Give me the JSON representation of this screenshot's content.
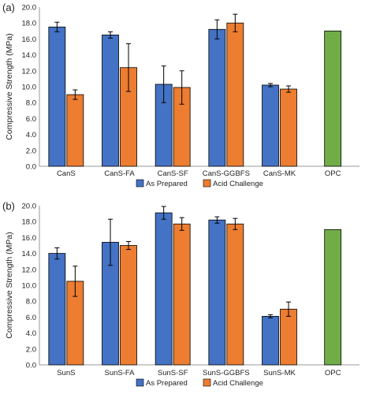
{
  "colors": {
    "as_prepared": "#4472C4",
    "acid_challenge": "#ED7D31",
    "opc": "#70AD47",
    "axis": "#999999",
    "grid": "#d9d9d9",
    "text": "#222222"
  },
  "chart_data": [
    {
      "type": "bar",
      "panel_label": "(a)",
      "ylabel": "Compressive Strength (MPa)",
      "ylim": [
        0,
        20
      ],
      "ytick_step": 2,
      "ytick_labels": [
        "0.0",
        "2.0",
        "4.0",
        "6.0",
        "8.0",
        "10.0",
        "12.0",
        "14.0",
        "16.0",
        "18.0",
        "20.0"
      ],
      "grid": false,
      "legend_position": "bottom-center",
      "categories": [
        "CanS",
        "CanS-FA",
        "CanS-SF",
        "CanS-GGBFS",
        "CanS-MK",
        "OPC"
      ],
      "series": [
        {
          "name": "As Prepared",
          "values": [
            17.5,
            16.5,
            10.3,
            17.2,
            10.2,
            null
          ],
          "errors": [
            0.6,
            0.4,
            2.3,
            1.2,
            0.2,
            null
          ]
        },
        {
          "name": "Acid Challenge",
          "values": [
            9.0,
            12.4,
            9.9,
            18.0,
            9.7,
            null
          ],
          "errors": [
            0.6,
            3.0,
            2.1,
            1.1,
            0.4,
            null
          ]
        },
        {
          "name": "OPC",
          "values": [
            null,
            null,
            null,
            null,
            null,
            17.0
          ],
          "errors": [
            null,
            null,
            null,
            null,
            null,
            null
          ]
        }
      ],
      "legend": [
        "As Prepared",
        "Acid Challenge"
      ]
    },
    {
      "type": "bar",
      "panel_label": "(b)",
      "ylabel": "Compressive Strength (MPa)",
      "ylim": [
        0,
        20
      ],
      "ytick_step": 2,
      "ytick_labels": [
        "0.0",
        "2.0",
        "4.0",
        "6.0",
        "8.0",
        "10.0",
        "12.0",
        "14.0",
        "16.0",
        "18.0",
        "20.0"
      ],
      "grid": false,
      "legend_position": "bottom-center",
      "categories": [
        "SunS",
        "SunS-FA",
        "SunS-SF",
        "SunS-GGBFS",
        "SunS-MK",
        "OPC"
      ],
      "series": [
        {
          "name": "As Prepared",
          "values": [
            14.0,
            15.4,
            19.1,
            18.2,
            6.1,
            null
          ],
          "errors": [
            0.7,
            2.9,
            0.8,
            0.4,
            0.2,
            null
          ]
        },
        {
          "name": "Acid Challenge",
          "values": [
            10.5,
            15.0,
            17.7,
            17.7,
            7.0,
            null
          ],
          "errors": [
            1.9,
            0.5,
            0.8,
            0.7,
            0.9,
            null
          ]
        },
        {
          "name": "OPC",
          "values": [
            null,
            null,
            null,
            null,
            null,
            17.0
          ],
          "errors": [
            null,
            null,
            null,
            null,
            null,
            null
          ]
        }
      ],
      "legend": [
        "As Prepared",
        "Acid Challenge"
      ]
    }
  ]
}
